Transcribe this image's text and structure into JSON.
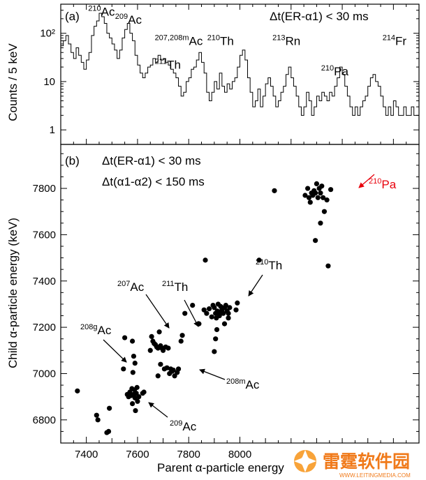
{
  "chart_data": [
    {
      "type": "line",
      "panel_label": "(a)",
      "ylabel": "Counts / 5 keV",
      "yscale": "log",
      "xlim": [
        7300,
        8700
      ],
      "ylim": [
        0.5,
        400
      ],
      "yticks": [
        1,
        10,
        100
      ],
      "ytick_labels": [
        "1",
        "10",
        "10²"
      ],
      "cut_label": "Δt(ER-α1) < 30 ms",
      "grid": false,
      "spectrum": [
        [
          7300,
          55
        ],
        [
          7310,
          70
        ],
        [
          7320,
          90
        ],
        [
          7330,
          60
        ],
        [
          7340,
          40
        ],
        [
          7350,
          30
        ],
        [
          7360,
          50
        ],
        [
          7370,
          35
        ],
        [
          7380,
          25
        ],
        [
          7390,
          18
        ],
        [
          7400,
          28
        ],
        [
          7410,
          40
        ],
        [
          7420,
          90
        ],
        [
          7430,
          140
        ],
        [
          7440,
          180
        ],
        [
          7450,
          260
        ],
        [
          7460,
          220
        ],
        [
          7470,
          160
        ],
        [
          7480,
          100
        ],
        [
          7490,
          80
        ],
        [
          7500,
          60
        ],
        [
          7510,
          45
        ],
        [
          7520,
          30
        ],
        [
          7530,
          45
        ],
        [
          7540,
          80
        ],
        [
          7550,
          120
        ],
        [
          7560,
          160
        ],
        [
          7570,
          100
        ],
        [
          7580,
          70
        ],
        [
          7590,
          35
        ],
        [
          7600,
          22
        ],
        [
          7610,
          15
        ],
        [
          7620,
          12
        ],
        [
          7630,
          15
        ],
        [
          7640,
          20
        ],
        [
          7650,
          22
        ],
        [
          7660,
          30
        ],
        [
          7670,
          25
        ],
        [
          7680,
          35
        ],
        [
          7690,
          28
        ],
        [
          7700,
          30
        ],
        [
          7710,
          25
        ],
        [
          7720,
          22
        ],
        [
          7730,
          18
        ],
        [
          7740,
          15
        ],
        [
          7750,
          12
        ],
        [
          7760,
          8
        ],
        [
          7770,
          5
        ],
        [
          7780,
          6
        ],
        [
          7790,
          10
        ],
        [
          7800,
          12
        ],
        [
          7810,
          18
        ],
        [
          7820,
          20
        ],
        [
          7830,
          28
        ],
        [
          7840,
          40
        ],
        [
          7850,
          25
        ],
        [
          7860,
          15
        ],
        [
          7870,
          6
        ],
        [
          7880,
          4
        ],
        [
          7890,
          6
        ],
        [
          7900,
          10
        ],
        [
          7910,
          7
        ],
        [
          7920,
          15
        ],
        [
          7930,
          8
        ],
        [
          7940,
          6
        ],
        [
          7950,
          9
        ],
        [
          7960,
          7
        ],
        [
          7970,
          10
        ],
        [
          7980,
          12
        ],
        [
          7990,
          20
        ],
        [
          8000,
          35
        ],
        [
          8010,
          45
        ],
        [
          8020,
          28
        ],
        [
          8030,
          12
        ],
        [
          8040,
          6
        ],
        [
          8050,
          3
        ],
        [
          8060,
          4
        ],
        [
          8070,
          7
        ],
        [
          8080,
          3
        ],
        [
          8090,
          5
        ],
        [
          8100,
          9
        ],
        [
          8110,
          12
        ],
        [
          8120,
          8
        ],
        [
          8130,
          5
        ],
        [
          8140,
          3
        ],
        [
          8150,
          4
        ],
        [
          8160,
          6
        ],
        [
          8170,
          8
        ],
        [
          8180,
          14
        ],
        [
          8190,
          20
        ],
        [
          8200,
          12
        ],
        [
          8210,
          8
        ],
        [
          8220,
          5
        ],
        [
          8230,
          3
        ],
        [
          8240,
          2
        ],
        [
          8250,
          3
        ],
        [
          8260,
          6
        ],
        [
          8270,
          4
        ],
        [
          8280,
          2
        ],
        [
          8290,
          3
        ],
        [
          8300,
          5
        ],
        [
          8310,
          4
        ],
        [
          8320,
          6
        ],
        [
          8330,
          5
        ],
        [
          8340,
          4
        ],
        [
          8350,
          6
        ],
        [
          8360,
          5
        ],
        [
          8370,
          8
        ],
        [
          8380,
          12
        ],
        [
          8390,
          20
        ],
        [
          8400,
          14
        ],
        [
          8410,
          8
        ],
        [
          8420,
          5
        ],
        [
          8430,
          3
        ],
        [
          8440,
          2
        ],
        [
          8450,
          3
        ],
        [
          8460,
          2
        ],
        [
          8470,
          3
        ],
        [
          8480,
          4
        ],
        [
          8490,
          5
        ],
        [
          8500,
          8
        ],
        [
          8510,
          12
        ],
        [
          8520,
          14
        ],
        [
          8530,
          10
        ],
        [
          8540,
          8
        ],
        [
          8550,
          5
        ],
        [
          8560,
          3
        ],
        [
          8570,
          2
        ],
        [
          8580,
          3
        ],
        [
          8590,
          2
        ],
        [
          8600,
          4
        ],
        [
          8610,
          3
        ],
        [
          8620,
          2
        ],
        [
          8630,
          2
        ],
        [
          8640,
          3
        ],
        [
          8650,
          2
        ],
        [
          8660,
          2
        ],
        [
          8670,
          3
        ],
        [
          8680,
          2
        ],
        [
          8690,
          2
        ]
      ],
      "annotations": [
        {
          "sup": "210",
          "text": "Ac",
          "x": 7440,
          "y": 190
        },
        {
          "sup": "209",
          "text": "Ac",
          "x": 7545,
          "y": 130
        },
        {
          "sup": "207,208m",
          "text": "Ac",
          "x": 7700,
          "y": 47
        },
        {
          "sup": "211",
          "text": "Th",
          "x": 7700,
          "y": 15
        },
        {
          "sup": "210",
          "text": "Th",
          "x": 7905,
          "y": 47
        },
        {
          "sup": "213",
          "text": "Rn",
          "x": 8160,
          "y": 47
        },
        {
          "sup": "210",
          "text": "Pa",
          "x": 8350,
          "y": 11
        },
        {
          "sup": "214",
          "text": "Fr",
          "x": 8590,
          "y": 47
        }
      ]
    },
    {
      "type": "scatter",
      "panel_label": "(b)",
      "xlabel": "Parent α-particle energy",
      "ylabel": "Child α-particle energy (keV)",
      "xlim": [
        7300,
        8700
      ],
      "ylim": [
        6700,
        7990
      ],
      "xticks": [
        7400,
        7600,
        7800,
        8000
      ],
      "yticks": [
        6800,
        7000,
        7200,
        7400,
        7600,
        7800
      ],
      "cut_label_1": "Δt(ER-α1) < 30 ms",
      "cut_label_2": "Δt(α1-α2) < 150 ms",
      "grid": false,
      "points": [
        [
          7365,
          6925
        ],
        [
          7440,
          6820
        ],
        [
          7445,
          6800
        ],
        [
          7480,
          6745
        ],
        [
          7487,
          6750
        ],
        [
          7490,
          6850
        ],
        [
          7545,
          7020
        ],
        [
          7550,
          7155
        ],
        [
          7560,
          6910
        ],
        [
          7565,
          6900
        ],
        [
          7570,
          6920
        ],
        [
          7575,
          6905
        ],
        [
          7578,
          6935
        ],
        [
          7580,
          6870
        ],
        [
          7582,
          7005
        ],
        [
          7585,
          6910
        ],
        [
          7588,
          6930
        ],
        [
          7590,
          6895
        ],
        [
          7592,
          6840
        ],
        [
          7595,
          6915
        ],
        [
          7598,
          6940
        ],
        [
          7590,
          7045
        ],
        [
          7585,
          7075
        ],
        [
          7580,
          7140
        ],
        [
          7600,
          6880
        ],
        [
          7605,
          6900
        ],
        [
          7620,
          6915
        ],
        [
          7625,
          6920
        ],
        [
          7650,
          7100
        ],
        [
          7655,
          7160
        ],
        [
          7660,
          7140
        ],
        [
          7665,
          7130
        ],
        [
          7670,
          7125
        ],
        [
          7675,
          7115
        ],
        [
          7680,
          7110
        ],
        [
          7685,
          7180
        ],
        [
          7690,
          7120
        ],
        [
          7695,
          7110
        ],
        [
          7700,
          7100
        ],
        [
          7710,
          7115
        ],
        [
          7720,
          7110
        ],
        [
          7680,
          6990
        ],
        [
          7690,
          7040
        ],
        [
          7705,
          7020
        ],
        [
          7715,
          7025
        ],
        [
          7725,
          7000
        ],
        [
          7730,
          7020
        ],
        [
          7735,
          7010
        ],
        [
          7740,
          7015
        ],
        [
          7745,
          6990
        ],
        [
          7755,
          7005
        ],
        [
          7760,
          7020
        ],
        [
          7770,
          7140
        ],
        [
          7775,
          7165
        ],
        [
          7785,
          7260
        ],
        [
          7815,
          7295
        ],
        [
          7840,
          7215
        ],
        [
          7860,
          7275
        ],
        [
          7865,
          7490
        ],
        [
          7870,
          7260
        ],
        [
          7880,
          7280
        ],
        [
          7890,
          7245
        ],
        [
          7895,
          7295
        ],
        [
          7900,
          7285
        ],
        [
          7905,
          7260
        ],
        [
          7908,
          7240
        ],
        [
          7912,
          7270
        ],
        [
          7915,
          7300
        ],
        [
          7918,
          7265
        ],
        [
          7920,
          7250
        ],
        [
          7925,
          7290
        ],
        [
          7930,
          7275
        ],
        [
          7935,
          7260
        ],
        [
          7940,
          7285
        ],
        [
          7945,
          7295
        ],
        [
          7950,
          7270
        ],
        [
          7955,
          7260
        ],
        [
          7960,
          7285
        ],
        [
          7900,
          7095
        ],
        [
          7905,
          7150
        ],
        [
          7910,
          7190
        ],
        [
          7940,
          7215
        ],
        [
          7955,
          7240
        ],
        [
          7985,
          7275
        ],
        [
          7990,
          7305
        ],
        [
          8075,
          7490
        ],
        [
          8135,
          7790
        ],
        [
          8255,
          7770
        ],
        [
          8265,
          7800
        ],
        [
          8270,
          7760
        ],
        [
          8275,
          7740
        ],
        [
          8280,
          7780
        ],
        [
          8285,
          7770
        ],
        [
          8290,
          7790
        ],
        [
          8295,
          7780
        ],
        [
          8300,
          7820
        ],
        [
          8305,
          7760
        ],
        [
          8310,
          7800
        ],
        [
          8315,
          7780
        ],
        [
          8320,
          7810
        ],
        [
          8325,
          7760
        ],
        [
          8330,
          7700
        ],
        [
          8340,
          7750
        ],
        [
          8295,
          7575
        ],
        [
          8315,
          7650
        ],
        [
          8345,
          7465
        ],
        [
          8355,
          7795
        ]
      ],
      "annotations": [
        {
          "sup": "210",
          "text": "Pa",
          "color": "#e8000b"
        },
        {
          "sup": "210",
          "text": "Th",
          "color": "#000000"
        },
        {
          "sup": "207",
          "text": "Ac",
          "color": "#000000"
        },
        {
          "sup": "211",
          "text": "Th",
          "color": "#000000"
        },
        {
          "sup": "208g",
          "text": "Ac",
          "color": "#000000"
        },
        {
          "sup": "208m",
          "text": "Ac",
          "color": "#000000"
        },
        {
          "sup": "209",
          "text": "Ac",
          "color": "#000000"
        }
      ]
    }
  ],
  "watermark": {
    "title": "雷霆软件园",
    "url": "WWW.LEITINGMEDIA.COM",
    "color": "#f07a1a"
  }
}
